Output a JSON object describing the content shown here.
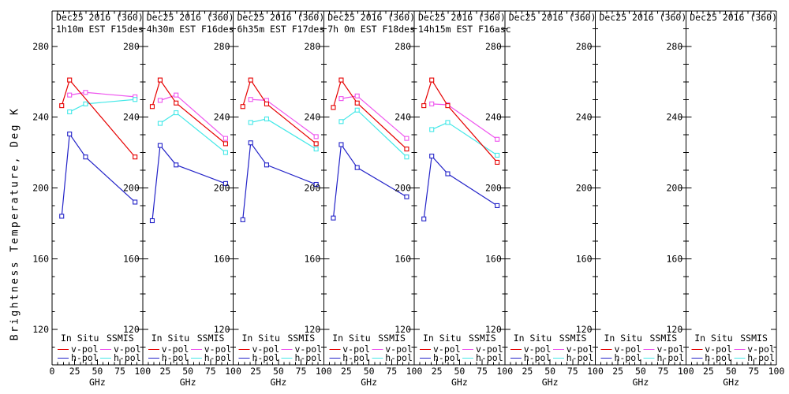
{
  "chart_data": {
    "type": "line",
    "ylabel": "Brightness Temperature, Deg K",
    "xlabel": "GHz",
    "xlim": [
      0,
      100
    ],
    "ylim": [
      100,
      300
    ],
    "x_ticks": [
      0,
      25,
      50,
      75,
      100
    ],
    "y_ticks": [
      120,
      160,
      200,
      240,
      280
    ],
    "x_minor_step_ghz": 6.25,
    "y_minor_step_k": 10,
    "grid": false,
    "legend_position": "bottom-inside-each-panel",
    "colors": {
      "in_situ_vpol": "#e60000",
      "in_situ_hpol": "#2323c8",
      "ssmis_vpol": "#ee55ee",
      "ssmis_hpol": "#44e8e8"
    },
    "legend": {
      "groups": [
        {
          "header": "In Situ",
          "entries": [
            {
              "label": "v-pol",
              "color_key": "in_situ_vpol"
            },
            {
              "label": "h-pol",
              "color_key": "in_situ_hpol"
            }
          ]
        },
        {
          "header": "SSMIS",
          "entries": [
            {
              "label": "v-pol",
              "color_key": "ssmis_vpol"
            },
            {
              "label": "h-pol",
              "color_key": "ssmis_hpol"
            }
          ]
        }
      ]
    },
    "panels": [
      {
        "title_line1": "Dec25 2016 (360)",
        "title_line2": "1h10m EST F15des",
        "series": [
          {
            "name": "ssmis-v-pol",
            "color_key": "ssmis_vpol",
            "x": [
              19.35,
              37,
              91.655
            ],
            "y": [
              252.5,
              254,
              251.5
            ]
          },
          {
            "name": "ssmis-h-pol",
            "color_key": "ssmis_hpol",
            "x": [
              19.35,
              37,
              91.655
            ],
            "y": [
              243,
              247.5,
              250
            ]
          },
          {
            "name": "in-situ-v-pol",
            "color_key": "in_situ_vpol",
            "x": [
              10.65,
              19.35,
              91.655
            ],
            "y": [
              246.5,
              261,
              217.5
            ]
          },
          {
            "name": "in-situ-h-pol",
            "color_key": "in_situ_hpol",
            "x": [
              10.65,
              19.35,
              37,
              91.655
            ],
            "y": [
              184,
              230.5,
              217.5,
              192
            ]
          }
        ]
      },
      {
        "title_line1": "Dec25 2016 (360)",
        "title_line2": "4h30m EST F16des",
        "series": [
          {
            "name": "ssmis-v-pol",
            "color_key": "ssmis_vpol",
            "x": [
              19.35,
              37,
              91.655
            ],
            "y": [
              249.5,
              252.5,
              228
            ]
          },
          {
            "name": "ssmis-h-pol",
            "color_key": "ssmis_hpol",
            "x": [
              19.35,
              37,
              91.655
            ],
            "y": [
              236.5,
              242.5,
              220
            ]
          },
          {
            "name": "in-situ-v-pol",
            "color_key": "in_situ_vpol",
            "x": [
              10.65,
              19.35,
              37,
              91.655
            ],
            "y": [
              246,
              261,
              248,
              225
            ]
          },
          {
            "name": "in-situ-h-pol",
            "color_key": "in_situ_hpol",
            "x": [
              10.65,
              19.35,
              37,
              91.655
            ],
            "y": [
              181.5,
              224,
              213,
              202.5
            ]
          }
        ]
      },
      {
        "title_line1": "Dec25 2016 (360)",
        "title_line2": "6h35m EST F17des",
        "series": [
          {
            "name": "ssmis-v-pol",
            "color_key": "ssmis_vpol",
            "x": [
              19.35,
              37,
              91.655
            ],
            "y": [
              250,
              249.5,
              229
            ]
          },
          {
            "name": "ssmis-h-pol",
            "color_key": "ssmis_hpol",
            "x": [
              19.35,
              37,
              91.655
            ],
            "y": [
              237,
              239,
              222
            ]
          },
          {
            "name": "in-situ-v-pol",
            "color_key": "in_situ_vpol",
            "x": [
              10.65,
              19.35,
              37,
              91.655
            ],
            "y": [
              246,
              261,
              247.5,
              225
            ]
          },
          {
            "name": "in-situ-h-pol",
            "color_key": "in_situ_hpol",
            "x": [
              10.65,
              19.35,
              37,
              91.655
            ],
            "y": [
              182,
              225.5,
              213,
              202
            ]
          }
        ]
      },
      {
        "title_line1": "Dec25 2016 (360)",
        "title_line2": "7h 0m EST F18des",
        "series": [
          {
            "name": "ssmis-v-pol",
            "color_key": "ssmis_vpol",
            "x": [
              19.35,
              37,
              91.655
            ],
            "y": [
              250.5,
              252,
              228
            ]
          },
          {
            "name": "ssmis-h-pol",
            "color_key": "ssmis_hpol",
            "x": [
              19.35,
              37,
              91.655
            ],
            "y": [
              237.5,
              244,
              217.5
            ]
          },
          {
            "name": "in-situ-v-pol",
            "color_key": "in_situ_vpol",
            "x": [
              10.65,
              19.35,
              37,
              91.655
            ],
            "y": [
              245.5,
              261,
              248,
              222
            ]
          },
          {
            "name": "in-situ-h-pol",
            "color_key": "in_situ_hpol",
            "x": [
              10.65,
              19.35,
              37,
              91.655
            ],
            "y": [
              183,
              224.5,
              211.5,
              195
            ]
          }
        ]
      },
      {
        "title_line1": "Dec25 2016 (360)",
        "title_line2": "14h15m EST F16asc",
        "series": [
          {
            "name": "ssmis-v-pol",
            "color_key": "ssmis_vpol",
            "x": [
              19.35,
              37,
              91.655
            ],
            "y": [
              247.5,
              247,
              227.5
            ]
          },
          {
            "name": "ssmis-h-pol",
            "color_key": "ssmis_hpol",
            "x": [
              19.35,
              37,
              91.655
            ],
            "y": [
              233,
              237,
              218.5
            ]
          },
          {
            "name": "in-situ-v-pol",
            "color_key": "in_situ_vpol",
            "x": [
              10.65,
              19.35,
              37,
              91.655
            ],
            "y": [
              246.5,
              261,
              246.5,
              214.5
            ]
          },
          {
            "name": "in-situ-h-pol",
            "color_key": "in_situ_hpol",
            "x": [
              10.65,
              19.35,
              37,
              91.655
            ],
            "y": [
              182.5,
              218,
              208,
              190
            ]
          }
        ]
      },
      {
        "title_line1": "Dec25 2016 (360)",
        "title_line2": "",
        "series": []
      },
      {
        "title_line1": "Dec25 2016 (360)",
        "title_line2": "",
        "series": []
      },
      {
        "title_line1": "Dec25 2016 (360)",
        "title_line2": "",
        "series": []
      }
    ]
  }
}
